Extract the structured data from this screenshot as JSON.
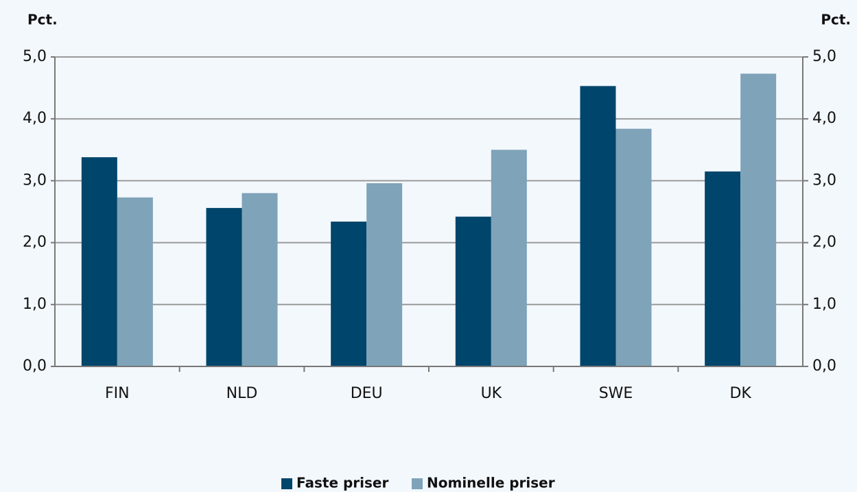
{
  "chart_data": {
    "type": "bar",
    "ylabel": "Pct.",
    "y2label": "Pct.",
    "categories": [
      "FIN",
      "NLD",
      "DEU",
      "UK",
      "SWE",
      "DK"
    ],
    "series": [
      {
        "name": "Faste priser",
        "color": "#00456b",
        "values": [
          3.38,
          2.56,
          2.34,
          2.42,
          4.53,
          3.15
        ]
      },
      {
        "name": "Nominelle priser",
        "color": "#7fa3b9",
        "values": [
          2.73,
          2.8,
          2.96,
          3.5,
          3.84,
          4.73
        ]
      }
    ],
    "ylim": [
      0,
      5
    ],
    "yticks": [
      {
        "value": 0,
        "label": "0,0"
      },
      {
        "value": 1,
        "label": "1,0"
      },
      {
        "value": 2,
        "label": "2,0"
      },
      {
        "value": 3,
        "label": "3,0"
      },
      {
        "value": 4,
        "label": "4,0"
      },
      {
        "value": 5,
        "label": "5,0"
      }
    ],
    "y2lim": [
      0,
      5
    ],
    "y2ticks": [
      {
        "value": 0,
        "label": "0,0"
      },
      {
        "value": 1,
        "label": "1,0"
      },
      {
        "value": 2,
        "label": "2,0"
      },
      {
        "value": 3,
        "label": "3,0"
      },
      {
        "value": 4,
        "label": "4,0"
      },
      {
        "value": 5,
        "label": "5,0"
      }
    ],
    "grid": true,
    "legend": "bottom"
  }
}
